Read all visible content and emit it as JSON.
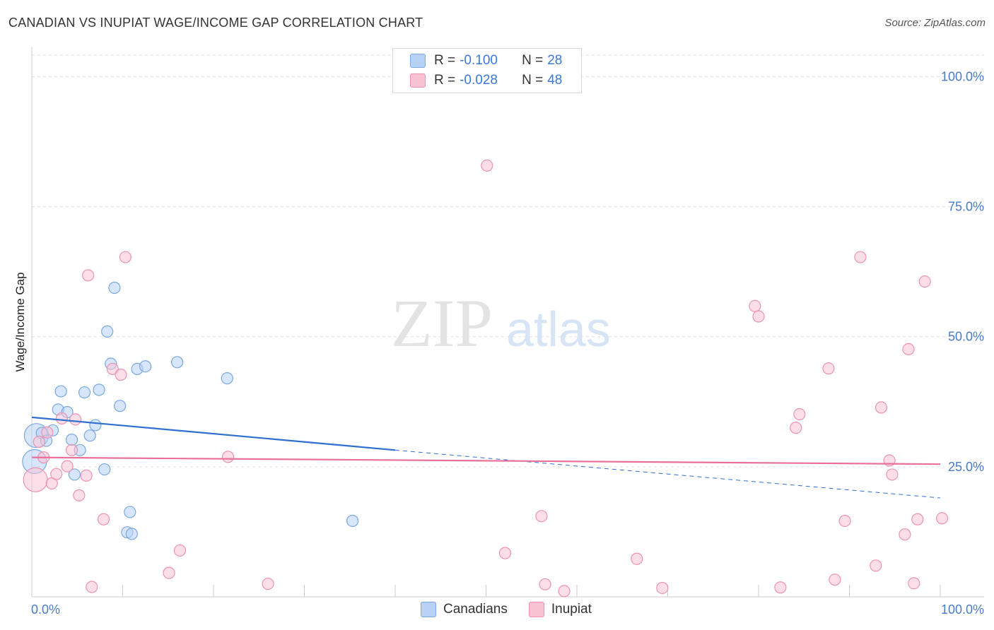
{
  "header": {
    "title": "CANADIAN VS INUPIAT WAGE/INCOME GAP CORRELATION CHART",
    "source": "Source: ZipAtlas.com"
  },
  "watermark": {
    "zip": "ZIP",
    "atlas": "atlas"
  },
  "legend": {
    "rows": [
      {
        "r_label": "R =",
        "r_value": "-0.100",
        "n_label": "N =",
        "n_value": "28"
      },
      {
        "r_label": "R =",
        "r_value": "-0.028",
        "n_label": "N =",
        "n_value": "48"
      }
    ],
    "bottom": [
      "Canadians",
      "Inupiat"
    ]
  },
  "colors": {
    "canadians_fill": "#b7d2f5",
    "canadians_stroke": "#7aa8e0",
    "canadians_line": "#2f6fd0",
    "inupiat_fill": "#f8c2d3",
    "inupiat_stroke": "#ec93b0",
    "inupiat_line": "#e8709a",
    "tick_text": "#4a7bc8",
    "grid": "#e3e3e3"
  },
  "chart_data": {
    "type": "scatter",
    "title": "CANADIAN VS INUPIAT WAGE/INCOME GAP CORRELATION CHART",
    "xlabel": "",
    "ylabel": "Wage/Income Gap",
    "xlim": [
      0,
      100
    ],
    "ylim": [
      0,
      104
    ],
    "x_tick_labels": [
      "0.0%",
      "100.0%"
    ],
    "y_ticks": [
      25,
      50,
      75,
      100
    ],
    "y_tick_labels": [
      "25.0%",
      "50.0%",
      "75.0%",
      "100.0%"
    ],
    "series": [
      {
        "name": "Canadians",
        "r": -0.1,
        "n": 28,
        "trend": {
          "x0": 0,
          "y0": 34.5,
          "x1": 40,
          "y1": 28.2,
          "x_dash_end": 100,
          "y_dash_end": 19
        },
        "points": [
          [
            0.5,
            31,
            1
          ],
          [
            0.3,
            26,
            1
          ],
          [
            1.1,
            31.5,
            0
          ],
          [
            1.6,
            30,
            0
          ],
          [
            2.3,
            32,
            0
          ],
          [
            2.9,
            36,
            0
          ],
          [
            3.2,
            39.5,
            0
          ],
          [
            3.9,
            35.5,
            0
          ],
          [
            4.4,
            30.2,
            0
          ],
          [
            4.7,
            23.5,
            0
          ],
          [
            5.3,
            28.2,
            0
          ],
          [
            5.8,
            39.3,
            0
          ],
          [
            6.4,
            31,
            0
          ],
          [
            7,
            33,
            0
          ],
          [
            7.4,
            39.8,
            0
          ],
          [
            8,
            24.5,
            0
          ],
          [
            8.3,
            51,
            0
          ],
          [
            8.7,
            44.8,
            0
          ],
          [
            9.1,
            59.4,
            0
          ],
          [
            9.7,
            36.7,
            0
          ],
          [
            10.5,
            12.4,
            0
          ],
          [
            10.8,
            16.3,
            0
          ],
          [
            11,
            12.1,
            0
          ],
          [
            11.6,
            43.8,
            0
          ],
          [
            12.5,
            44.3,
            0
          ],
          [
            16,
            45.1,
            0
          ],
          [
            21.5,
            42,
            0
          ],
          [
            35.3,
            14.6,
            0
          ]
        ]
      },
      {
        "name": "Inupiat",
        "r": -0.028,
        "n": 48,
        "trend": {
          "x0": 0,
          "y0": 26.8,
          "x1": 100,
          "y1": 25.5
        },
        "points": [
          [
            0.4,
            22.5,
            1
          ],
          [
            0.8,
            29.8,
            0
          ],
          [
            1.3,
            26.8,
            0
          ],
          [
            1.7,
            31.6,
            0
          ],
          [
            2.2,
            21.8,
            0
          ],
          [
            2.7,
            23.6,
            0
          ],
          [
            3.3,
            34.3,
            0
          ],
          [
            3.9,
            25.1,
            0
          ],
          [
            4.4,
            28.2,
            0
          ],
          [
            4.8,
            34.1,
            0
          ],
          [
            5.2,
            19.5,
            0
          ],
          [
            6,
            23.3,
            0
          ],
          [
            6.2,
            61.8,
            0
          ],
          [
            6.6,
            1.9,
            0
          ],
          [
            7.9,
            14.9,
            0
          ],
          [
            8.9,
            43.8,
            0
          ],
          [
            9.8,
            42.7,
            0
          ],
          [
            10.3,
            65.3,
            0
          ],
          [
            15.1,
            4.6,
            0
          ],
          [
            16.3,
            8.9,
            0
          ],
          [
            21.6,
            26.9,
            0
          ],
          [
            26,
            2.5,
            0
          ],
          [
            50.1,
            82.9,
            0
          ],
          [
            52.1,
            8.4,
            0
          ],
          [
            56.1,
            15.5,
            0
          ],
          [
            56.5,
            2.4,
            0
          ],
          [
            58.6,
            1.1,
            0
          ],
          [
            66.6,
            7.3,
            0
          ],
          [
            69.4,
            1.7,
            0
          ],
          [
            79.6,
            55.9,
            0
          ],
          [
            80,
            53.9,
            0
          ],
          [
            82.4,
            1.8,
            0
          ],
          [
            84.1,
            32.5,
            0
          ],
          [
            84.5,
            35.1,
            0
          ],
          [
            87.7,
            43.9,
            0
          ],
          [
            88.4,
            3.3,
            0
          ],
          [
            89.5,
            14.6,
            0
          ],
          [
            91.2,
            65.3,
            0
          ],
          [
            92.9,
            6,
            0
          ],
          [
            93.5,
            36.4,
            0
          ],
          [
            94.4,
            26.2,
            0
          ],
          [
            94.7,
            23.5,
            0
          ],
          [
            96.1,
            12,
            0
          ],
          [
            96.5,
            47.6,
            0
          ],
          [
            97.1,
            2.6,
            0
          ],
          [
            97.5,
            14.9,
            0
          ],
          [
            98.3,
            60.6,
            0
          ],
          [
            100.2,
            15.1,
            0
          ]
        ]
      }
    ]
  }
}
